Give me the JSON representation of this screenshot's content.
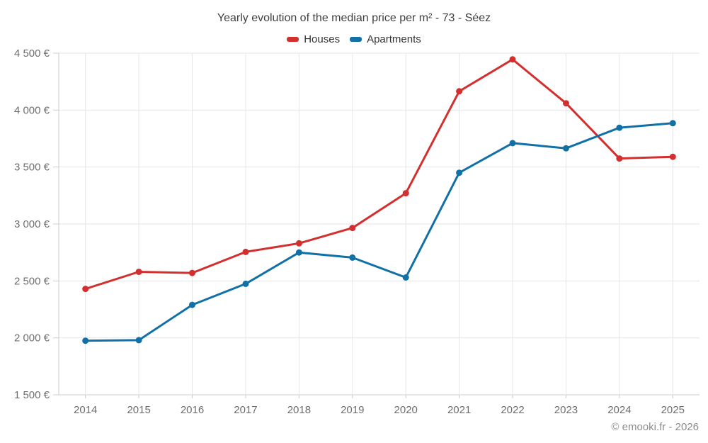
{
  "title": "Yearly evolution of the median price per m² - 73 - Séez",
  "watermark": "© emooki.fr - 2026",
  "legend": [
    {
      "label": "Houses",
      "color": "#d32f2f"
    },
    {
      "label": "Apartments",
      "color": "#1170a6"
    }
  ],
  "colors": {
    "houses": "#d32f2f",
    "apartments": "#1170a6",
    "gridline": "#e6e6e6",
    "axis_line": "#cccccc",
    "tick": "#cccccc",
    "axis_label": "#6e6e6e",
    "title_text": "#3f3f3f",
    "watermark_text": "#8d8d8d"
  },
  "chart_data": {
    "type": "line",
    "title": "Yearly evolution of the median price per m² - 73 - Séez",
    "categories": [
      "2014",
      "2015",
      "2016",
      "2017",
      "2018",
      "2019",
      "2020",
      "2021",
      "2022",
      "2023",
      "2024",
      "2025"
    ],
    "series": [
      {
        "name": "Houses",
        "color": "#d32f2f",
        "values": [
          2430,
          2580,
          2570,
          2755,
          2830,
          2965,
          3270,
          4165,
          4445,
          4060,
          3575,
          3590
        ]
      },
      {
        "name": "Apartments",
        "color": "#1170a6",
        "values": [
          1975,
          1980,
          2290,
          2475,
          2750,
          2705,
          2530,
          3450,
          3710,
          3665,
          3845,
          3885
        ]
      }
    ],
    "xlabel": "",
    "ylabel": "",
    "ylim": [
      1500,
      4500
    ],
    "ytick_step": 500,
    "ytick_labels": [
      "1 500 €",
      "2 000 €",
      "2 500 €",
      "3 000 €",
      "3 500 €",
      "4 000 €",
      "4 500 €"
    ],
    "grid": true,
    "legend_position": "top"
  }
}
